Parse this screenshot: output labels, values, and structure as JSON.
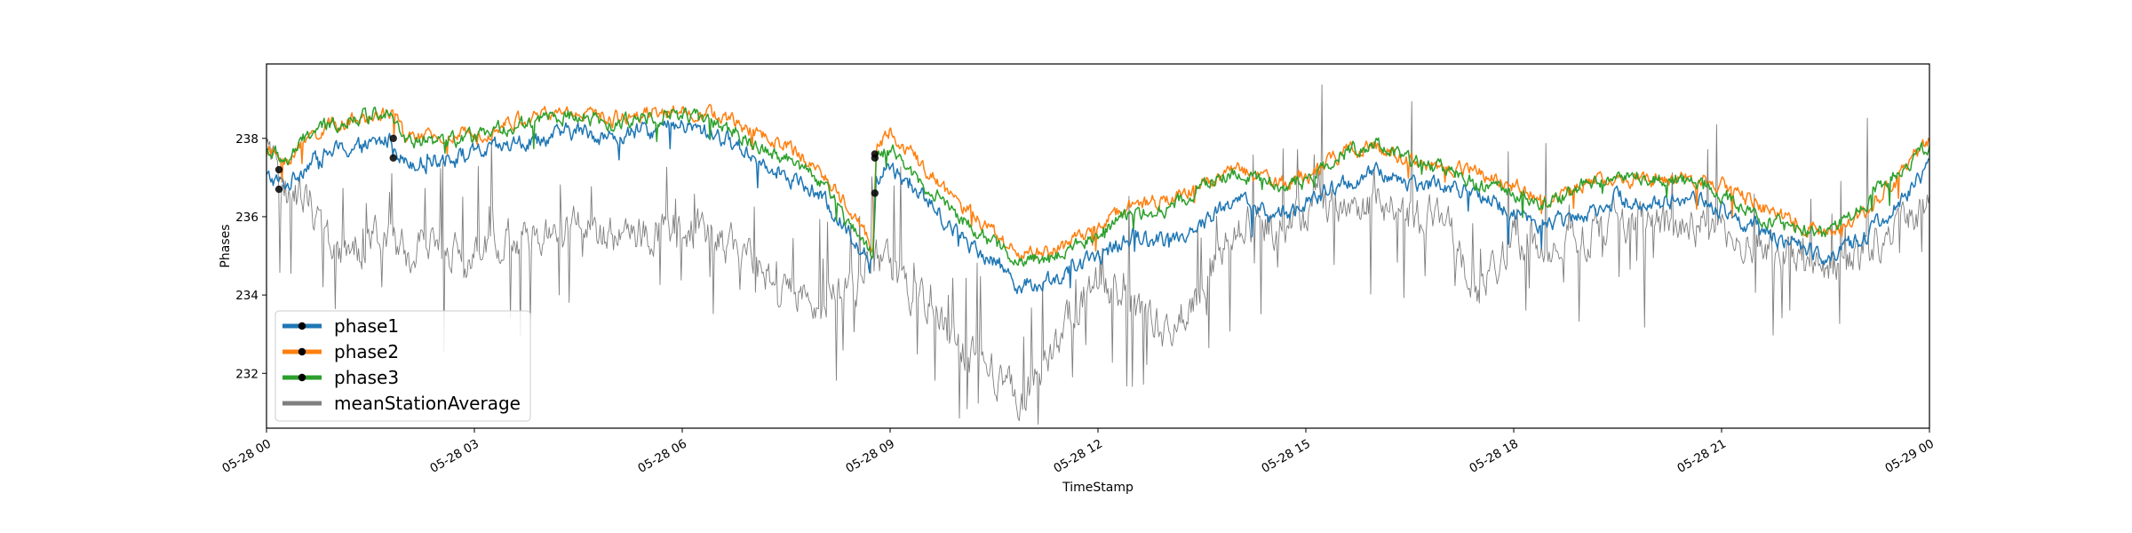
{
  "chart_data": {
    "type": "line",
    "title": "",
    "xlabel": "TimeStamp",
    "ylabel": "Phases",
    "xlim": [
      "2024-05-28 00:00",
      "2024-05-29 00:00"
    ],
    "ylim": [
      230.6,
      239.9
    ],
    "x_ticks": [
      {
        "hour": 0,
        "label": "05-28 00"
      },
      {
        "hour": 3,
        "label": "05-28 03"
      },
      {
        "hour": 6,
        "label": "05-28 06"
      },
      {
        "hour": 9,
        "label": "05-28 09"
      },
      {
        "hour": 12,
        "label": "05-28 12"
      },
      {
        "hour": 15,
        "label": "05-28 15"
      },
      {
        "hour": 18,
        "label": "05-28 18"
      },
      {
        "hour": 21,
        "label": "05-28 21"
      },
      {
        "hour": 24,
        "label": "05-29 00"
      }
    ],
    "y_ticks": [
      {
        "value": 232,
        "label": "232"
      },
      {
        "value": 234,
        "label": "234"
      },
      {
        "value": 236,
        "label": "236"
      },
      {
        "value": 238,
        "label": "238"
      }
    ],
    "grid": false,
    "legend_position": "lower-left",
    "series": [
      {
        "name": "phase1",
        "color": "#1f77b4",
        "noise": 0.35,
        "points": [
          [
            0.0,
            237.0
          ],
          [
            0.3,
            236.8
          ],
          [
            0.6,
            237.4
          ],
          [
            1.0,
            237.7
          ],
          [
            1.5,
            237.8
          ],
          [
            1.8,
            238.0
          ],
          [
            2.0,
            237.4
          ],
          [
            2.5,
            237.5
          ],
          [
            3.0,
            237.6
          ],
          [
            3.5,
            237.8
          ],
          [
            4.0,
            238.0
          ],
          [
            4.5,
            238.2
          ],
          [
            5.0,
            238.0
          ],
          [
            5.5,
            238.2
          ],
          [
            6.0,
            238.3
          ],
          [
            6.5,
            238.1
          ],
          [
            7.0,
            237.6
          ],
          [
            7.5,
            237.1
          ],
          [
            8.0,
            236.5
          ],
          [
            8.5,
            235.4
          ],
          [
            8.75,
            234.8
          ],
          [
            8.8,
            237.0
          ],
          [
            9.0,
            237.3
          ],
          [
            9.5,
            236.5
          ],
          [
            10.0,
            235.5
          ],
          [
            10.5,
            234.9
          ],
          [
            10.9,
            234.2
          ],
          [
            11.5,
            234.5
          ],
          [
            12.0,
            235.0
          ],
          [
            12.5,
            235.5
          ],
          [
            13.0,
            235.4
          ],
          [
            13.5,
            235.8
          ],
          [
            14.0,
            236.5
          ],
          [
            14.5,
            236.0
          ],
          [
            15.0,
            236.3
          ],
          [
            15.5,
            236.8
          ],
          [
            16.0,
            237.1
          ],
          [
            16.5,
            236.9
          ],
          [
            17.0,
            236.8
          ],
          [
            17.5,
            236.5
          ],
          [
            18.0,
            236.1
          ],
          [
            18.5,
            235.8
          ],
          [
            19.0,
            236.1
          ],
          [
            19.5,
            236.5
          ],
          [
            20.0,
            236.3
          ],
          [
            20.5,
            236.5
          ],
          [
            21.0,
            236.2
          ],
          [
            21.5,
            235.7
          ],
          [
            22.0,
            235.3
          ],
          [
            22.5,
            235.0
          ],
          [
            23.0,
            235.4
          ],
          [
            23.5,
            236.2
          ],
          [
            24.0,
            237.3
          ]
        ]
      },
      {
        "name": "phase2",
        "color": "#ff7f0e",
        "noise": 0.3,
        "points": [
          [
            0.0,
            237.7
          ],
          [
            0.3,
            237.4
          ],
          [
            0.6,
            238.0
          ],
          [
            1.0,
            238.4
          ],
          [
            1.5,
            238.5
          ],
          [
            1.8,
            238.7
          ],
          [
            2.0,
            238.0
          ],
          [
            2.5,
            238.0
          ],
          [
            3.0,
            238.1
          ],
          [
            3.5,
            238.4
          ],
          [
            4.0,
            238.6
          ],
          [
            4.5,
            238.7
          ],
          [
            5.0,
            238.5
          ],
          [
            5.5,
            238.7
          ],
          [
            6.0,
            238.7
          ],
          [
            6.5,
            238.6
          ],
          [
            7.0,
            238.2
          ],
          [
            7.5,
            237.8
          ],
          [
            8.0,
            237.2
          ],
          [
            8.5,
            236.0
          ],
          [
            8.75,
            235.3
          ],
          [
            8.8,
            237.8
          ],
          [
            9.0,
            238.2
          ],
          [
            9.5,
            237.2
          ],
          [
            10.0,
            236.3
          ],
          [
            10.5,
            235.6
          ],
          [
            10.9,
            235.0
          ],
          [
            11.5,
            235.2
          ],
          [
            12.0,
            235.8
          ],
          [
            12.5,
            236.3
          ],
          [
            13.0,
            236.4
          ],
          [
            13.5,
            236.9
          ],
          [
            14.0,
            237.2
          ],
          [
            14.5,
            236.9
          ],
          [
            15.0,
            237.0
          ],
          [
            15.5,
            237.6
          ],
          [
            16.0,
            237.8
          ],
          [
            16.5,
            237.4
          ],
          [
            17.0,
            237.3
          ],
          [
            17.5,
            237.1
          ],
          [
            18.0,
            236.8
          ],
          [
            18.5,
            236.4
          ],
          [
            19.0,
            236.8
          ],
          [
            19.5,
            237.0
          ],
          [
            20.0,
            236.9
          ],
          [
            20.5,
            237.0
          ],
          [
            21.0,
            236.8
          ],
          [
            21.5,
            236.3
          ],
          [
            22.0,
            235.9
          ],
          [
            22.5,
            235.6
          ],
          [
            23.0,
            236.0
          ],
          [
            23.5,
            237.0
          ],
          [
            24.0,
            237.9
          ]
        ]
      },
      {
        "name": "phase3",
        "color": "#2ca02c",
        "noise": 0.3,
        "points": [
          [
            0.0,
            237.7
          ],
          [
            0.3,
            237.4
          ],
          [
            0.6,
            238.1
          ],
          [
            1.0,
            238.4
          ],
          [
            1.5,
            238.6
          ],
          [
            1.8,
            238.8
          ],
          [
            2.0,
            237.9
          ],
          [
            2.5,
            237.9
          ],
          [
            3.0,
            238.0
          ],
          [
            3.5,
            238.3
          ],
          [
            4.0,
            238.5
          ],
          [
            4.5,
            238.6
          ],
          [
            5.0,
            238.3
          ],
          [
            5.5,
            238.6
          ],
          [
            6.0,
            238.6
          ],
          [
            6.5,
            238.4
          ],
          [
            7.0,
            237.9
          ],
          [
            7.5,
            237.5
          ],
          [
            8.0,
            236.9
          ],
          [
            8.5,
            235.6
          ],
          [
            8.75,
            235.0
          ],
          [
            8.8,
            237.5
          ],
          [
            9.0,
            237.7
          ],
          [
            9.5,
            236.8
          ],
          [
            10.0,
            236.0
          ],
          [
            10.5,
            235.3
          ],
          [
            10.9,
            234.8
          ],
          [
            11.5,
            235.1
          ],
          [
            12.0,
            235.6
          ],
          [
            12.5,
            236.1
          ],
          [
            13.0,
            236.2
          ],
          [
            13.5,
            236.8
          ],
          [
            14.0,
            237.1
          ],
          [
            14.5,
            236.8
          ],
          [
            15.0,
            236.9
          ],
          [
            15.5,
            237.6
          ],
          [
            16.0,
            237.9
          ],
          [
            16.5,
            237.4
          ],
          [
            17.0,
            237.2
          ],
          [
            17.5,
            236.8
          ],
          [
            18.0,
            236.6
          ],
          [
            18.5,
            236.3
          ],
          [
            19.0,
            236.8
          ],
          [
            19.5,
            237.1
          ],
          [
            20.0,
            237.0
          ],
          [
            20.5,
            236.9
          ],
          [
            21.0,
            236.6
          ],
          [
            21.5,
            236.0
          ],
          [
            22.0,
            235.7
          ],
          [
            22.5,
            235.6
          ],
          [
            23.0,
            236.2
          ],
          [
            23.5,
            237.1
          ],
          [
            24.0,
            237.8
          ]
        ]
      },
      {
        "name": "meanStationAverage",
        "color": "#7f7f7f",
        "noise": 0.8,
        "points": [
          [
            0.0,
            237.6
          ],
          [
            0.3,
            236.5
          ],
          [
            0.6,
            236.5
          ],
          [
            0.9,
            235.2
          ],
          [
            1.2,
            235.0
          ],
          [
            1.5,
            235.5
          ],
          [
            1.8,
            235.4
          ],
          [
            2.0,
            235.1
          ],
          [
            2.5,
            235.2
          ],
          [
            3.0,
            235.0
          ],
          [
            3.5,
            235.4
          ],
          [
            4.0,
            235.6
          ],
          [
            4.5,
            235.8
          ],
          [
            5.0,
            235.5
          ],
          [
            5.5,
            235.5
          ],
          [
            6.0,
            235.8
          ],
          [
            6.5,
            235.5
          ],
          [
            7.0,
            234.9
          ],
          [
            7.5,
            234.2
          ],
          [
            8.0,
            233.9
          ],
          [
            8.5,
            234.2
          ],
          [
            8.8,
            235.0
          ],
          [
            9.0,
            234.6
          ],
          [
            9.5,
            233.8
          ],
          [
            10.0,
            232.6
          ],
          [
            10.5,
            232.0
          ],
          [
            10.9,
            231.4
          ],
          [
            11.3,
            232.3
          ],
          [
            11.6,
            233.5
          ],
          [
            12.0,
            234.4
          ],
          [
            12.5,
            233.6
          ],
          [
            13.0,
            232.9
          ],
          [
            13.5,
            234.2
          ],
          [
            14.0,
            235.8
          ],
          [
            14.5,
            235.8
          ],
          [
            15.0,
            236.0
          ],
          [
            15.5,
            236.4
          ],
          [
            16.0,
            236.4
          ],
          [
            16.5,
            236.0
          ],
          [
            17.0,
            235.9
          ],
          [
            17.5,
            234.0
          ],
          [
            18.0,
            235.5
          ],
          [
            18.5,
            235.3
          ],
          [
            19.0,
            235.5
          ],
          [
            19.5,
            236.0
          ],
          [
            20.0,
            235.8
          ],
          [
            20.5,
            235.9
          ],
          [
            21.0,
            235.5
          ],
          [
            21.5,
            235.2
          ],
          [
            22.0,
            235.0
          ],
          [
            22.5,
            234.8
          ],
          [
            23.0,
            235.0
          ],
          [
            23.5,
            235.6
          ],
          [
            24.0,
            236.2
          ]
        ]
      }
    ],
    "markers": [
      {
        "series": "phase1",
        "x": 0.18,
        "y": 236.7
      },
      {
        "series": "phase3",
        "x": 0.18,
        "y": 237.2
      },
      {
        "series": "phase1",
        "x": 1.83,
        "y": 237.5
      },
      {
        "series": "phase3",
        "x": 1.83,
        "y": 238.0
      },
      {
        "series": "phase1",
        "x": 8.78,
        "y": 236.6
      },
      {
        "series": "phase2",
        "x": 8.78,
        "y": 237.5
      },
      {
        "series": "phase3",
        "x": 8.78,
        "y": 237.6
      }
    ]
  }
}
